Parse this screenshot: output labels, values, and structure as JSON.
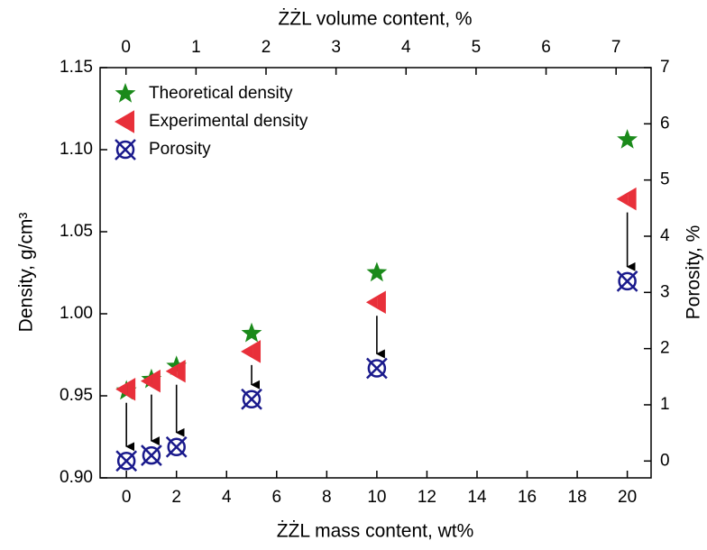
{
  "chart_data": {
    "type": "scatter",
    "x_label": "ŻŻL mass content, wt%",
    "x2_label": "ŻŻL volume content, %",
    "y_label": "Density, g/cm³",
    "y2_label": "Porosity, %",
    "xlim": [
      -1.05,
      20.95
    ],
    "xticks": [
      0,
      2,
      4,
      6,
      8,
      10,
      12,
      14,
      16,
      18,
      20
    ],
    "x2lim": [
      -0.37,
      7.5
    ],
    "x2ticks": [
      0,
      1,
      2,
      3,
      4,
      5,
      6,
      7
    ],
    "ylim": [
      0.9,
      1.15
    ],
    "yticks": [
      {
        "value": 0.9,
        "label": "0.90"
      },
      0.95,
      {
        "value": 1.0,
        "label": "1.00"
      },
      1.05,
      {
        "value": 1.1,
        "label": "1.10"
      },
      1.15
    ],
    "y2lim": [
      -0.3,
      7
    ],
    "y2ticks": [
      0,
      1,
      2,
      3,
      4,
      5,
      6,
      7
    ],
    "legend": "upper left",
    "series": [
      {
        "name": "Theoretical density",
        "color": "#1a8a1a",
        "marker": "star",
        "x": [
          0,
          1,
          2,
          5,
          10,
          20
        ],
        "values": [
          0.953,
          0.96,
          0.968,
          0.988,
          1.025,
          1.106
        ]
      },
      {
        "name": "Experimental density",
        "color": "#e8303a",
        "marker": "half-triangle",
        "x": [
          0,
          1,
          2,
          5,
          10,
          20
        ],
        "values": [
          0.954,
          0.959,
          0.965,
          0.977,
          1.007,
          1.07
        ]
      },
      {
        "name": "Porosity",
        "color": "#1a1a8c",
        "marker": "crossed-circle",
        "axis": "y2",
        "x": [
          0,
          1,
          2,
          5,
          10,
          20
        ],
        "values": [
          0.0,
          0.1,
          0.25,
          1.1,
          1.65,
          3.2
        ]
      }
    ]
  }
}
